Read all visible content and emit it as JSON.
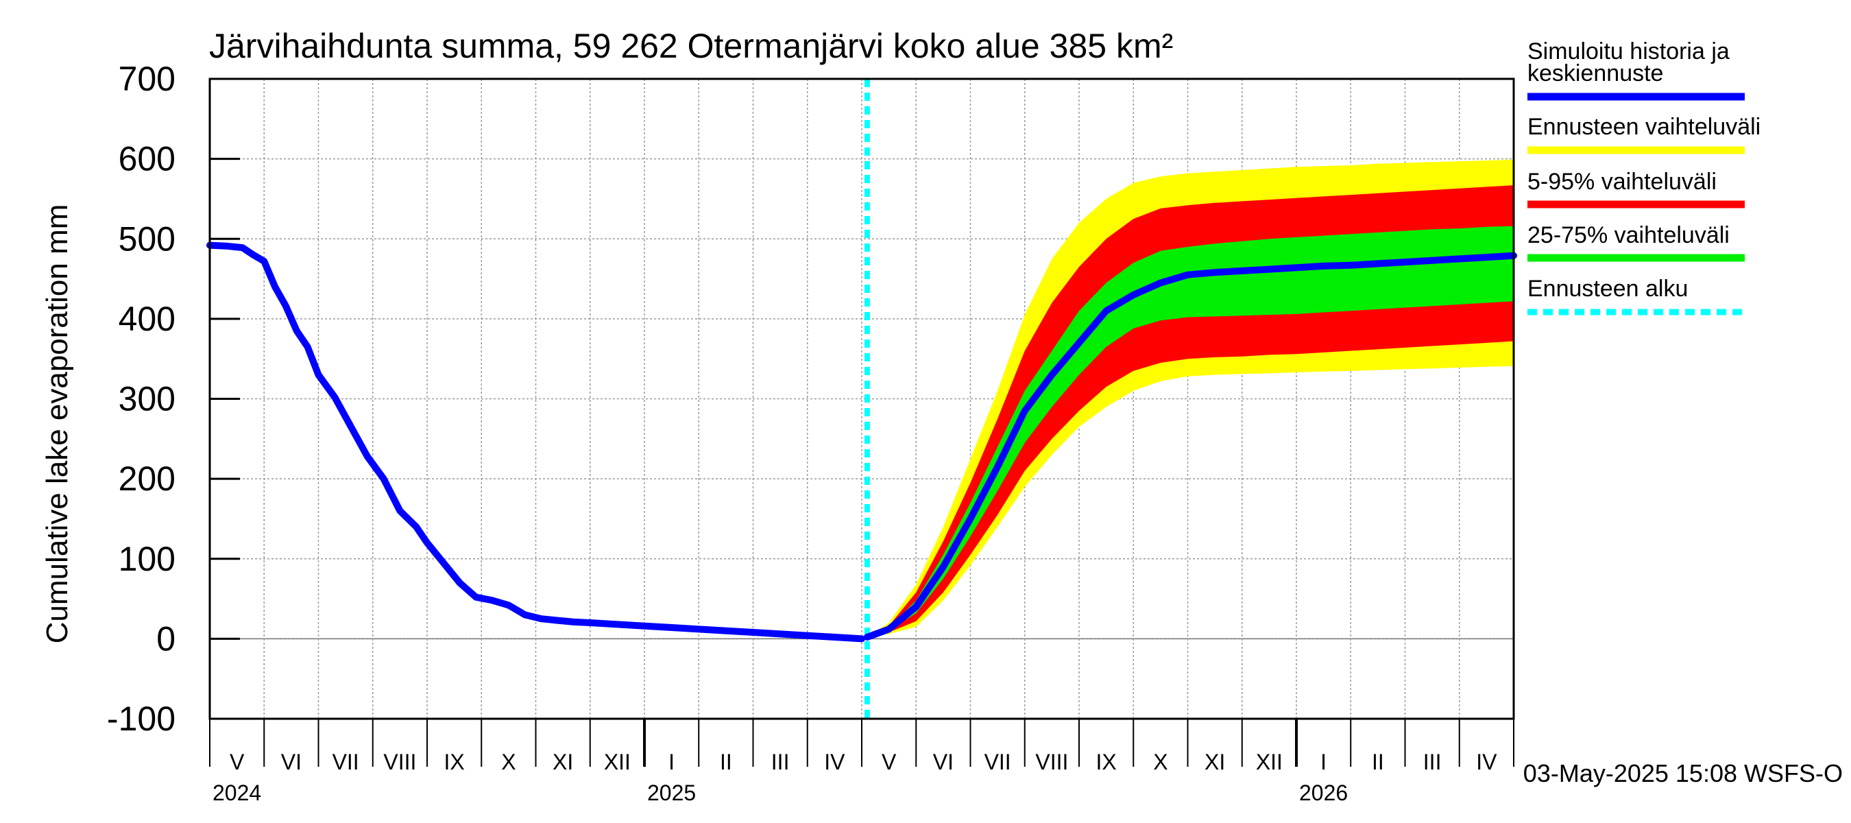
{
  "chart_data": {
    "type": "line",
    "title": "Järvihaihdunta summa, 59 262 Otermanjärvi koko alue 385 km²",
    "ylabel": "Cumulative lake evaporation   mm",
    "ylim": [
      -100,
      700
    ],
    "y_ticks": [
      "700",
      "600",
      "500",
      "400",
      "300",
      "200",
      "100",
      "0",
      "-100"
    ],
    "y_tick_values": [
      700,
      600,
      500,
      400,
      300,
      200,
      100,
      0,
      -100
    ],
    "x_range": [
      0,
      24
    ],
    "months": [
      {
        "label": "V",
        "index": 0
      },
      {
        "label": "VI",
        "index": 1
      },
      {
        "label": "VII",
        "index": 2
      },
      {
        "label": "VIII",
        "index": 3
      },
      {
        "label": "IX",
        "index": 4
      },
      {
        "label": "X",
        "index": 5
      },
      {
        "label": "XI",
        "index": 6
      },
      {
        "label": "XII",
        "index": 7
      },
      {
        "label": "I",
        "index": 8
      },
      {
        "label": "II",
        "index": 9
      },
      {
        "label": "III",
        "index": 10
      },
      {
        "label": "IV",
        "index": 11
      },
      {
        "label": "V",
        "index": 12
      },
      {
        "label": "VI",
        "index": 13
      },
      {
        "label": "VII",
        "index": 14
      },
      {
        "label": "VIII",
        "index": 15
      },
      {
        "label": "IX",
        "index": 16
      },
      {
        "label": "X",
        "index": 17
      },
      {
        "label": "XI",
        "index": 18
      },
      {
        "label": "XII",
        "index": 19
      },
      {
        "label": "I",
        "index": 20
      },
      {
        "label": "II",
        "index": 21
      },
      {
        "label": "III",
        "index": 22
      },
      {
        "label": "IV",
        "index": 23
      }
    ],
    "years": [
      {
        "label": "2024",
        "month_index": 0
      },
      {
        "label": "2025",
        "month_index": 8
      },
      {
        "label": "2026",
        "month_index": 20
      }
    ],
    "year_boundaries": [
      8,
      20
    ],
    "forecast_start": 12.1,
    "history": {
      "x": [
        0,
        0.3,
        0.6,
        0.8,
        1.0,
        1.2,
        1.4,
        1.6,
        1.8,
        2.0,
        2.3,
        2.6,
        2.9,
        3.2,
        3.5,
        3.8,
        4.0,
        4.3,
        4.6,
        4.9,
        5.2,
        5.5,
        5.8,
        6.1,
        6.4,
        6.7,
        7.0,
        7.5,
        8.0,
        8.5,
        9.0,
        9.5,
        10.0,
        10.5,
        11.0,
        11.5,
        12.0
      ],
      "y": [
        492,
        491,
        489,
        480,
        472,
        440,
        416,
        385,
        365,
        330,
        302,
        265,
        228,
        200,
        160,
        140,
        120,
        95,
        70,
        52,
        48,
        42,
        30,
        25,
        23,
        21,
        20,
        18,
        16,
        14,
        12,
        10,
        8,
        6,
        4,
        2,
        0
      ]
    },
    "forecast": {
      "x": [
        12.1,
        12.5,
        13.0,
        13.5,
        14.0,
        14.5,
        15.0,
        15.5,
        16.0,
        16.5,
        17.0,
        17.5,
        18.0,
        18.5,
        19.0,
        19.5,
        20.0,
        20.5,
        21.0,
        21.5,
        22.0,
        22.5,
        23.0,
        23.5,
        24.0
      ],
      "median": [
        2,
        12,
        40,
        90,
        150,
        215,
        285,
        330,
        370,
        410,
        430,
        445,
        455,
        458,
        460,
        462,
        464,
        466,
        467,
        469,
        471,
        473,
        475,
        477,
        479
      ],
      "p25": [
        2,
        10,
        32,
        75,
        128,
        185,
        245,
        290,
        330,
        365,
        388,
        398,
        402,
        403,
        404,
        405,
        406,
        408,
        410,
        412,
        414,
        416,
        418,
        420,
        422
      ],
      "p75": [
        2,
        14,
        48,
        105,
        170,
        240,
        310,
        360,
        410,
        445,
        470,
        485,
        490,
        494,
        497,
        500,
        502,
        504,
        506,
        508,
        510,
        512,
        513,
        515,
        516
      ],
      "p5": [
        2,
        8,
        22,
        58,
        105,
        155,
        210,
        250,
        285,
        315,
        335,
        345,
        350,
        352,
        353,
        355,
        356,
        358,
        360,
        362,
        364,
        366,
        368,
        370,
        372
      ],
      "p95": [
        2,
        16,
        58,
        122,
        195,
        275,
        360,
        420,
        465,
        500,
        525,
        538,
        542,
        545,
        547,
        549,
        551,
        553,
        555,
        557,
        559,
        561,
        563,
        565,
        567
      ],
      "min": [
        2,
        6,
        15,
        48,
        92,
        140,
        190,
        230,
        265,
        290,
        310,
        322,
        328,
        330,
        331,
        332,
        333,
        334,
        335,
        336,
        337,
        338,
        339,
        340,
        341
      ],
      "max": [
        2,
        20,
        68,
        140,
        225,
        310,
        405,
        475,
        520,
        550,
        570,
        578,
        582,
        584,
        586,
        588,
        590,
        591,
        592,
        594,
        595,
        596,
        597,
        598,
        599
      ]
    },
    "legend": [
      {
        "label": "Simuloitu historia ja keskiennuste",
        "line1": "Simuloitu historia ja",
        "line2": "keskiennuste",
        "color": "#0000ff",
        "style": "solid"
      },
      {
        "label": "Ennusteen vaihteluväli",
        "color": "#ffff00",
        "style": "solid"
      },
      {
        "label": "5-95% vaihteluväli",
        "color": "#ff0000",
        "style": "solid"
      },
      {
        "label": "25-75% vaihteluväli",
        "color": "#00ee00",
        "style": "solid"
      },
      {
        "label": "Ennusteen alku",
        "color": "#00ffff",
        "style": "dashed"
      }
    ],
    "timestamp": "03-May-2025 15:08 WSFS-O",
    "colors": {
      "history": "#0000ff",
      "range_full": "#ffff00",
      "range_90": "#ff0000",
      "range_50": "#00ee00",
      "forecast_start": "#00ffff",
      "grid": "#999999"
    }
  }
}
